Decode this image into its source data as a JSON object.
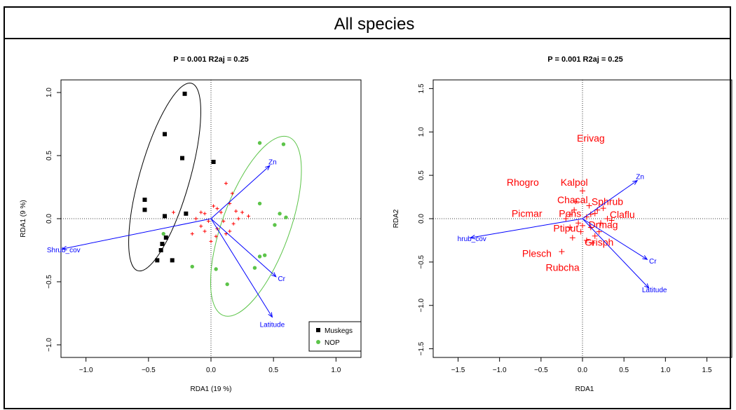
{
  "page_title": "All species",
  "colors": {
    "muskegs": "#000000",
    "nop": "#5cc449",
    "species": "#ff0000",
    "arrows": "#0000ff"
  },
  "chart_data": [
    {
      "type": "scatter",
      "title": "P = 0.001 R2aj = 0.25",
      "xlabel": "RDA1 (19 %)",
      "ylabel": "RDA1 (9 %)",
      "xlim": [
        -1.2,
        1.2
      ],
      "ylim": [
        -1.1,
        1.1
      ],
      "xticks": [
        "−1.0",
        "−0.5",
        "0.0",
        "0.5",
        "1.0"
      ],
      "xtick_values": [
        -1.0,
        -0.5,
        0.0,
        0.5,
        1.0
      ],
      "yticks": [
        "−1.0",
        "−0.5",
        "0.0",
        "0.5",
        "1.0"
      ],
      "ytick_values": [
        -1.0,
        -0.5,
        0.0,
        0.5,
        1.0
      ],
      "legend": {
        "position": "bottom-right",
        "entries": [
          "Muskegs",
          "NOP"
        ]
      },
      "series": [
        {
          "name": "Muskegs",
          "marker": "square",
          "color": "#000000",
          "points": [
            [
              -0.21,
              0.99
            ],
            [
              -0.37,
              0.67
            ],
            [
              -0.23,
              0.48
            ],
            [
              0.02,
              0.45
            ],
            [
              -0.53,
              0.15
            ],
            [
              -0.53,
              0.07
            ],
            [
              -0.37,
              0.02
            ],
            [
              -0.2,
              0.04
            ],
            [
              -0.36,
              -0.15
            ],
            [
              -0.39,
              -0.2
            ],
            [
              -0.4,
              -0.25
            ],
            [
              -0.43,
              -0.33
            ],
            [
              -0.31,
              -0.33
            ]
          ]
        },
        {
          "name": "NOP",
          "marker": "circle",
          "color": "#5cc449",
          "points": [
            [
              0.39,
              0.6
            ],
            [
              0.58,
              0.59
            ],
            [
              0.39,
              0.12
            ],
            [
              0.55,
              0.04
            ],
            [
              0.6,
              0.01
            ],
            [
              0.51,
              -0.05
            ],
            [
              0.43,
              -0.29
            ],
            [
              0.39,
              -0.3
            ],
            [
              0.04,
              -0.4
            ],
            [
              0.35,
              -0.39
            ],
            [
              0.13,
              -0.52
            ],
            [
              -0.15,
              -0.38
            ],
            [
              -0.38,
              -0.12
            ]
          ]
        }
      ],
      "species_points": [
        [
          0.12,
          0.28
        ],
        [
          0.17,
          0.2
        ],
        [
          0.15,
          0.12
        ],
        [
          0.05,
          0.08
        ],
        [
          -0.08,
          0.05
        ],
        [
          0.08,
          0.05
        ],
        [
          0.2,
          0.06
        ],
        [
          0.25,
          0.05
        ],
        [
          -0.05,
          0.04
        ],
        [
          0.02,
          0.1
        ],
        [
          -0.3,
          0.05
        ],
        [
          -0.02,
          -0.02
        ],
        [
          0.1,
          -0.02
        ],
        [
          0.22,
          0.0
        ],
        [
          0.18,
          -0.04
        ],
        [
          -0.08,
          -0.06
        ],
        [
          0.05,
          -0.08
        ],
        [
          0.15,
          -0.1
        ],
        [
          -0.15,
          -0.12
        ],
        [
          0.04,
          -0.14
        ],
        [
          -0.05,
          -0.1
        ],
        [
          0.3,
          0.02
        ],
        [
          0.12,
          -0.12
        ],
        [
          0.0,
          -0.18
        ],
        [
          -0.12,
          0.0
        ]
      ],
      "ellipses": [
        {
          "group": "Muskegs",
          "cx": -0.37,
          "cy": 0.33,
          "rx": 0.78,
          "ry": 0.2,
          "angle_deg": 74
        },
        {
          "group": "NOP",
          "cx": 0.36,
          "cy": -0.06,
          "rx": 0.76,
          "ry": 0.27,
          "angle_deg": 70
        }
      ],
      "arrows": [
        {
          "label": "Zn",
          "x": 0.47,
          "y": 0.42
        },
        {
          "label": "Shrub_cov",
          "x": -1.19,
          "y": -0.24
        },
        {
          "label": "Cr",
          "x": 0.52,
          "y": -0.46
        },
        {
          "label": "Latitude",
          "x": 0.49,
          "y": -0.78
        }
      ]
    },
    {
      "type": "scatter",
      "title": "P = 0.001 R2aj = 0.25",
      "xlabel": "RDA1",
      "ylabel": "RDA2",
      "xlim": [
        -1.8,
        1.8
      ],
      "ylim": [
        -1.6,
        1.6
      ],
      "xticks": [
        "−1.5",
        "−1.0",
        "−0.5",
        "0.0",
        "0.5",
        "1.0",
        "1.5"
      ],
      "xtick_values": [
        -1.5,
        -1.0,
        -0.5,
        0.0,
        0.5,
        1.0,
        1.5
      ],
      "yticks": [
        "−1.5",
        "−1.0",
        "−0.5",
        "0.0",
        "0.5",
        "1.0",
        "1.5"
      ],
      "ytick_values": [
        -1.5,
        -1.0,
        -0.5,
        0.0,
        0.5,
        1.0,
        1.5
      ],
      "species_points": [
        [
          0.0,
          0.32
        ],
        [
          0.18,
          0.1
        ],
        [
          0.1,
          0.05
        ],
        [
          -0.1,
          0.1
        ],
        [
          -0.15,
          0.05
        ],
        [
          0.15,
          0.06
        ],
        [
          0.22,
          -0.05
        ],
        [
          0.3,
          0.0
        ],
        [
          -0.2,
          0.0
        ],
        [
          0.05,
          0.02
        ],
        [
          -0.05,
          -0.05
        ],
        [
          0.1,
          -0.1
        ],
        [
          -0.12,
          -0.22
        ],
        [
          0.05,
          -0.25
        ],
        [
          0.12,
          -0.28
        ],
        [
          -0.25,
          -0.38
        ],
        [
          -0.15,
          -0.1
        ],
        [
          0.2,
          -0.15
        ],
        [
          0.0,
          -0.08
        ],
        [
          0.08,
          0.15
        ],
        [
          -0.08,
          0.2
        ],
        [
          0.15,
          -0.2
        ],
        [
          0.35,
          -0.02
        ],
        [
          0.25,
          0.12
        ],
        [
          -0.02,
          -0.15
        ]
      ],
      "species_labels": [
        {
          "label": "Erivag",
          "x": 0.1,
          "y": 0.93
        },
        {
          "label": "Rhogro",
          "x": -0.72,
          "y": 0.42
        },
        {
          "label": "Kalpol",
          "x": -0.1,
          "y": 0.42
        },
        {
          "label": "Chacal",
          "x": -0.12,
          "y": 0.22
        },
        {
          "label": "Sphrub",
          "x": 0.3,
          "y": 0.2
        },
        {
          "label": "Picmar",
          "x": -0.67,
          "y": 0.06
        },
        {
          "label": "Pohs",
          "x": -0.15,
          "y": 0.06
        },
        {
          "label": "Claflu",
          "x": 0.48,
          "y": 0.05
        },
        {
          "label": "Ptiput",
          "x": -0.2,
          "y": -0.11
        },
        {
          "label": "Drmag",
          "x": 0.25,
          "y": -0.07
        },
        {
          "label": "Grisph",
          "x": 0.2,
          "y": -0.27
        },
        {
          "label": "Plesch",
          "x": -0.55,
          "y": -0.4
        },
        {
          "label": "Rubcha",
          "x": -0.24,
          "y": -0.56
        }
      ],
      "arrows": [
        {
          "label": "Zn",
          "x": 0.66,
          "y": 0.44
        },
        {
          "label": "hrub_cov",
          "x": -1.35,
          "y": -0.22
        },
        {
          "label": "Cr",
          "x": 0.78,
          "y": -0.47
        },
        {
          "label": "Latitude",
          "x": 0.8,
          "y": -0.8
        }
      ]
    }
  ]
}
